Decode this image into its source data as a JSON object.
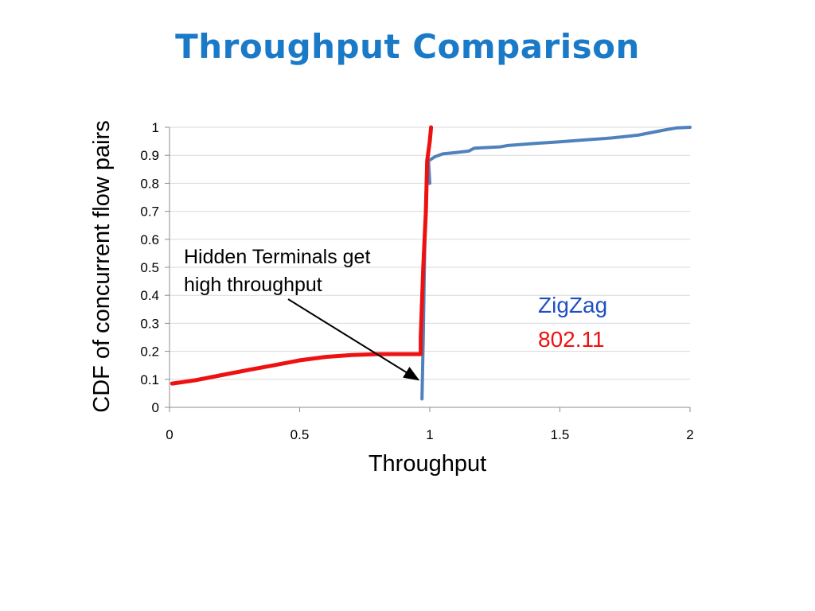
{
  "slide": {
    "title": "Throughput Comparison",
    "title_color": "#1a7ac8"
  },
  "chart_data": {
    "type": "line",
    "xlabel": "Throughput",
    "ylabel": "CDF of concurrent flow pairs",
    "xlim": [
      0,
      2
    ],
    "ylim": [
      0,
      1
    ],
    "x_ticks": [
      "0",
      "0.5",
      "1",
      "1.5",
      "2"
    ],
    "y_ticks": [
      "0",
      "0.1",
      "0.2",
      "0.3",
      "0.4",
      "0.5",
      "0.6",
      "0.7",
      "0.8",
      "0.9",
      "1"
    ],
    "grid": "horizontal",
    "series": [
      {
        "name": "ZigZag",
        "color": "#4f81bd",
        "points": [
          [
            0.97,
            0.03
          ],
          [
            0.975,
            0.25
          ],
          [
            0.98,
            0.55
          ],
          [
            0.985,
            0.75
          ],
          [
            0.99,
            0.84
          ],
          [
            1.0,
            0.8
          ],
          [
            0.995,
            0.88
          ],
          [
            1.02,
            0.895
          ],
          [
            1.05,
            0.905
          ],
          [
            1.1,
            0.91
          ],
          [
            1.15,
            0.915
          ],
          [
            1.17,
            0.925
          ],
          [
            1.2,
            0.927
          ],
          [
            1.27,
            0.93
          ],
          [
            1.3,
            0.935
          ],
          [
            1.4,
            0.942
          ],
          [
            1.5,
            0.948
          ],
          [
            1.6,
            0.955
          ],
          [
            1.7,
            0.962
          ],
          [
            1.8,
            0.972
          ],
          [
            1.9,
            0.99
          ],
          [
            1.95,
            0.998
          ],
          [
            2.0,
            1.0
          ]
        ]
      },
      {
        "name": "802.11",
        "color": "#ee1111",
        "points": [
          [
            0.01,
            0.085
          ],
          [
            0.05,
            0.09
          ],
          [
            0.1,
            0.097
          ],
          [
            0.2,
            0.115
          ],
          [
            0.3,
            0.133
          ],
          [
            0.4,
            0.15
          ],
          [
            0.5,
            0.168
          ],
          [
            0.6,
            0.18
          ],
          [
            0.7,
            0.187
          ],
          [
            0.8,
            0.19
          ],
          [
            0.9,
            0.19
          ],
          [
            0.965,
            0.19
          ],
          [
            0.965,
            0.25
          ],
          [
            0.975,
            0.5
          ],
          [
            0.985,
            0.7
          ],
          [
            0.99,
            0.88
          ],
          [
            1.0,
            0.95
          ],
          [
            1.005,
            1.0
          ]
        ]
      }
    ],
    "annotation": {
      "lines": [
        "Hidden Terminals get",
        "high throughput"
      ],
      "arrow_to": [
        0.965,
        0.09
      ]
    }
  }
}
